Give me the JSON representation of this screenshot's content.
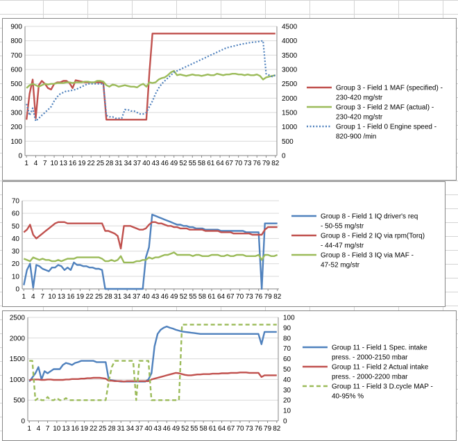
{
  "chart_data": [
    {
      "type": "line",
      "x_tick_labels": [
        "1",
        "4",
        "7",
        "10",
        "13",
        "16",
        "19",
        "22",
        "25",
        "28",
        "31",
        "34",
        "37",
        "40",
        "43",
        "46",
        "49",
        "52",
        "55",
        "58",
        "61",
        "64",
        "67",
        "70",
        "73",
        "76",
        "79",
        "82"
      ],
      "ylim": [
        0,
        900
      ],
      "y_ticks": [
        0,
        100,
        200,
        300,
        400,
        500,
        600,
        700,
        800,
        900
      ],
      "y2lim": [
        0,
        4500
      ],
      "y2_ticks": [
        0,
        500,
        1000,
        1500,
        2000,
        2500,
        3000,
        3500,
        4000,
        4500
      ],
      "series": [
        {
          "name": "Group 3 - Field 1 MAF (specified) - 230-420  mg/str",
          "color": "#c0504d",
          "style": "solid",
          "axis": "left",
          "values": [
            250,
            430,
            530,
            260,
            490,
            520,
            500,
            470,
            460,
            500,
            510,
            510,
            520,
            520,
            505,
            470,
            525,
            520,
            515,
            510,
            510,
            510,
            510,
            510,
            510,
            505,
            250,
            250,
            250,
            250,
            250,
            250,
            250,
            250,
            250,
            250,
            250,
            250,
            250,
            250,
            580,
            850,
            850,
            850,
            850,
            850,
            850,
            850,
            850,
            850,
            850,
            850,
            850,
            850,
            850,
            850,
            850,
            850,
            850,
            850,
            850,
            850,
            850,
            850,
            850,
            850,
            850,
            850,
            850,
            850,
            850,
            850,
            850,
            850,
            850,
            850,
            850,
            850,
            850,
            850,
            850,
            850
          ]
        },
        {
          "name": "Group 3 - Field 2 MAF (actual) - 230-420 mg/str",
          "color": "#9bbb59",
          "style": "solid",
          "axis": "left",
          "values": [
            470,
            490,
            500,
            490,
            480,
            490,
            500,
            495,
            500,
            500,
            505,
            505,
            505,
            510,
            510,
            505,
            510,
            510,
            510,
            515,
            515,
            510,
            510,
            520,
            520,
            515,
            490,
            480,
            495,
            490,
            480,
            485,
            490,
            485,
            480,
            480,
            475,
            490,
            500,
            480,
            510,
            505,
            510,
            530,
            540,
            545,
            560,
            580,
            590,
            560,
            565,
            560,
            555,
            560,
            565,
            560,
            560,
            555,
            560,
            565,
            560,
            560,
            570,
            565,
            560,
            565,
            565,
            570,
            570,
            565,
            565,
            560,
            565,
            560,
            560,
            565,
            555,
            530,
            545,
            550,
            555,
            560
          ]
        },
        {
          "name": "Group 1 - Field 0 Engine speed - 820-900 /min",
          "color": "#4f81bd",
          "style": "dotted",
          "axis": "right",
          "values": [
            1800,
            1400,
            1650,
            1200,
            1300,
            1400,
            1500,
            1600,
            1700,
            1900,
            2050,
            2150,
            2200,
            2250,
            2250,
            2280,
            2300,
            2350,
            2400,
            2450,
            2500,
            2500,
            2500,
            2500,
            2500,
            2500,
            1400,
            1350,
            1350,
            1300,
            1300,
            1300,
            1600,
            1600,
            1550,
            1550,
            1500,
            1450,
            1450,
            1500,
            1700,
            1900,
            2150,
            2350,
            2500,
            2600,
            2700,
            2800,
            2900,
            2950,
            3000,
            3050,
            3100,
            3150,
            3200,
            3250,
            3300,
            3350,
            3400,
            3450,
            3500,
            3550,
            3600,
            3650,
            3700,
            3750,
            3780,
            3800,
            3830,
            3860,
            3880,
            3900,
            3920,
            3940,
            3950,
            3960,
            3980,
            4000,
            2850,
            2800,
            2750,
            2800
          ]
        }
      ]
    },
    {
      "type": "line",
      "x_tick_labels": [
        "1",
        "4",
        "7",
        "10",
        "13",
        "16",
        "19",
        "22",
        "25",
        "28",
        "31",
        "34",
        "37",
        "40",
        "43",
        "46",
        "49",
        "52",
        "55",
        "58",
        "61",
        "64",
        "67",
        "70",
        "73",
        "76",
        "79",
        "82"
      ],
      "ylim": [
        0,
        70
      ],
      "y_ticks": [
        0,
        10,
        20,
        30,
        40,
        50,
        60,
        70
      ],
      "series": [
        {
          "name": "Group 8 - Field 1 IQ driver's req - 50-55 mg/str",
          "color": "#4f81bd",
          "style": "solid",
          "axis": "left",
          "values": [
            3,
            15,
            20,
            1,
            19,
            18,
            16,
            15,
            14,
            17,
            17,
            19,
            18,
            15,
            17,
            15,
            21,
            19,
            19,
            18,
            18,
            17,
            17,
            16,
            16,
            15,
            0,
            0,
            0,
            0,
            0,
            0,
            0,
            0,
            0,
            0,
            0,
            0,
            0,
            25,
            33,
            59,
            58,
            57,
            56,
            55,
            54,
            53,
            52,
            51,
            51,
            50,
            50,
            49,
            49,
            48,
            48,
            48,
            47,
            47,
            47,
            47,
            47,
            46,
            46,
            46,
            46,
            46,
            46,
            46,
            46,
            45,
            45,
            45,
            45,
            45,
            0,
            52,
            52,
            52,
            52,
            52
          ]
        },
        {
          "name": "Group 8 - Field 2 IQ via rpm(Torq) - 44-47 mg/str",
          "color": "#c0504d",
          "style": "solid",
          "axis": "left",
          "values": [
            45,
            47,
            51,
            43,
            40,
            42,
            44,
            46,
            48,
            50,
            52,
            53,
            53,
            53,
            52,
            52,
            52,
            52,
            52,
            52,
            52,
            52,
            52,
            52,
            52,
            52,
            46,
            46,
            45,
            44,
            42,
            32,
            50,
            50,
            50,
            49,
            48,
            47,
            47,
            48,
            51,
            53,
            53,
            52,
            52,
            51,
            50,
            50,
            49,
            49,
            48,
            48,
            48,
            47,
            47,
            47,
            47,
            47,
            46,
            46,
            46,
            46,
            46,
            45,
            45,
            45,
            45,
            44,
            44,
            44,
            44,
            44,
            44,
            43,
            43,
            43,
            43,
            47,
            49,
            49,
            49,
            49
          ]
        },
        {
          "name": "Group 8 - Field 3 IQ via MAF - 47-52 mg/str",
          "color": "#9bbb59",
          "style": "solid",
          "axis": "left",
          "values": [
            24,
            23,
            22,
            25,
            24,
            23,
            24,
            23,
            23,
            22,
            22,
            23,
            22,
            23,
            24,
            24,
            24,
            25,
            25,
            25,
            25,
            25,
            25,
            25,
            25,
            24,
            22,
            22,
            23,
            22,
            23,
            26,
            21,
            21,
            21,
            21,
            22,
            22,
            23,
            23,
            25,
            24,
            25,
            25,
            26,
            27,
            27,
            28,
            29,
            27,
            27,
            27,
            27,
            27,
            26,
            27,
            27,
            26,
            26,
            26,
            27,
            27,
            27,
            26,
            26,
            27,
            26,
            26,
            27,
            27,
            27,
            26,
            26,
            26,
            26,
            27,
            23,
            27,
            27,
            26,
            26,
            27
          ]
        }
      ]
    },
    {
      "type": "line",
      "x_tick_labels": [
        "1",
        "4",
        "7",
        "10",
        "13",
        "16",
        "19",
        "22",
        "25",
        "28",
        "31",
        "34",
        "37",
        "40",
        "43",
        "46",
        "49",
        "52",
        "55",
        "58",
        "61",
        "64",
        "67",
        "70",
        "73",
        "76",
        "79",
        "82"
      ],
      "ylim": [
        0,
        2500
      ],
      "y_ticks": [
        0,
        500,
        1000,
        1500,
        2000,
        2500
      ],
      "y2lim": [
        0,
        100
      ],
      "y2_ticks": [
        0,
        10,
        20,
        30,
        40,
        50,
        60,
        70,
        80,
        90,
        100
      ],
      "series": [
        {
          "name": "Group 11 - Field 1 Spec. intake press. - 2000-2150  mbar",
          "color": "#4f81bd",
          "style": "solid",
          "axis": "left",
          "values": [
            950,
            1050,
            1150,
            1300,
            1000,
            1200,
            1150,
            1200,
            1250,
            1250,
            1250,
            1350,
            1400,
            1380,
            1350,
            1400,
            1420,
            1450,
            1450,
            1450,
            1450,
            1450,
            1420,
            1420,
            1420,
            1420,
            1000,
            980,
            970,
            960,
            950,
            950,
            950,
            950,
            950,
            950,
            950,
            950,
            950,
            1000,
            1150,
            1800,
            2100,
            2200,
            2250,
            2280,
            2250,
            2230,
            2200,
            2180,
            2160,
            2150,
            2140,
            2130,
            2120,
            2110,
            2100,
            2100,
            2100,
            2100,
            2100,
            2100,
            2100,
            2100,
            2100,
            2100,
            2100,
            2100,
            2100,
            2100,
            2100,
            2100,
            2100,
            2100,
            2100,
            2100,
            1850,
            2150,
            2150,
            2150,
            2150,
            2150
          ]
        },
        {
          "name": "Group 11 - Field 2 Actual intake press. - 2000-2200  mbar",
          "color": "#c0504d",
          "style": "solid",
          "axis": "left",
          "values": [
            980,
            1000,
            1000,
            1000,
            990,
            990,
            1000,
            1000,
            990,
            990,
            990,
            990,
            1000,
            1000,
            1010,
            1010,
            1010,
            1020,
            1020,
            1030,
            1030,
            1040,
            1040,
            1040,
            1030,
            1020,
            970,
            970,
            960,
            960,
            960,
            950,
            960,
            960,
            960,
            960,
            960,
            960,
            960,
            960,
            1000,
            1020,
            1040,
            1060,
            1080,
            1100,
            1120,
            1140,
            1160,
            1150,
            1130,
            1110,
            1100,
            1100,
            1110,
            1120,
            1120,
            1130,
            1130,
            1130,
            1140,
            1140,
            1140,
            1150,
            1150,
            1150,
            1160,
            1160,
            1160,
            1170,
            1170,
            1170,
            1160,
            1160,
            1160,
            1160,
            1060,
            1100,
            1100,
            1100,
            1100,
            1100
          ]
        },
        {
          "name": "Group 11 - Field 3 D.cycle MAP - 40-95%  %",
          "color": "#9bbb59",
          "style": "dashed",
          "axis": "right",
          "values": [
            58,
            58,
            20,
            22,
            20,
            20,
            23,
            20,
            20,
            22,
            20,
            20,
            22,
            20,
            20,
            20,
            20,
            20,
            20,
            20,
            20,
            20,
            20,
            20,
            20,
            20,
            38,
            52,
            58,
            58,
            58,
            58,
            58,
            58,
            58,
            20,
            58,
            58,
            58,
            58,
            20,
            20,
            20,
            20,
            20,
            20,
            20,
            20,
            20,
            20,
            93,
            93,
            93,
            93,
            93,
            93,
            93,
            93,
            93,
            93,
            93,
            93,
            93,
            93,
            93,
            93,
            93,
            93,
            93,
            93,
            93,
            93,
            93,
            93,
            93,
            93,
            93,
            93,
            93,
            93,
            93,
            93
          ]
        }
      ]
    }
  ]
}
